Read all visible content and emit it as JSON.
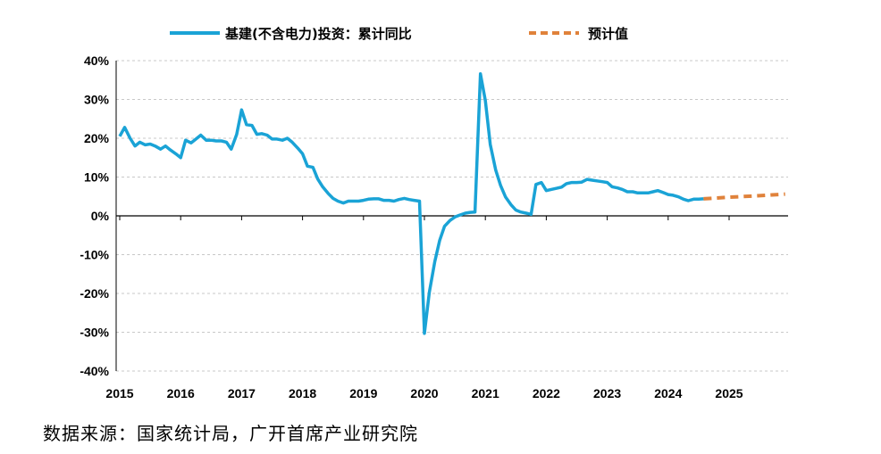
{
  "chart_data": {
    "type": "line",
    "title": "",
    "xlabel": "",
    "ylabel": "",
    "ylim": [
      -40,
      40
    ],
    "yticks": [
      40,
      30,
      20,
      10,
      0,
      -10,
      -20,
      -30,
      -40
    ],
    "ytick_labels": [
      "40%",
      "30%",
      "20%",
      "10%",
      "0%",
      "-10%",
      "-20%",
      "-30%",
      "-40%"
    ],
    "xlim": [
      2015,
      2026
    ],
    "xtick_labels": [
      "2015",
      "2016",
      "2017",
      "2018",
      "2019",
      "2020",
      "2021",
      "2022",
      "2023",
      "2024",
      "2025"
    ],
    "grid": true,
    "legend_position": "top",
    "series": [
      {
        "name": "基建(不含电力)投资：累计同比",
        "style": "solid",
        "color": "#1AA3D6",
        "points": [
          [
            2015.0,
            20.5
          ],
          [
            2015.08,
            22.8
          ],
          [
            2015.17,
            20.0
          ],
          [
            2015.25,
            18.0
          ],
          [
            2015.33,
            19.0
          ],
          [
            2015.42,
            18.3
          ],
          [
            2015.5,
            18.5
          ],
          [
            2015.58,
            18.0
          ],
          [
            2015.67,
            17.2
          ],
          [
            2015.75,
            18.0
          ],
          [
            2015.83,
            17.0
          ],
          [
            2015.92,
            16.0
          ],
          [
            2016.0,
            15.0
          ],
          [
            2016.08,
            19.5
          ],
          [
            2016.17,
            18.8
          ],
          [
            2016.25,
            19.8
          ],
          [
            2016.33,
            20.8
          ],
          [
            2016.42,
            19.5
          ],
          [
            2016.5,
            19.5
          ],
          [
            2016.58,
            19.3
          ],
          [
            2016.67,
            19.3
          ],
          [
            2016.75,
            19.0
          ],
          [
            2016.83,
            17.2
          ],
          [
            2016.92,
            21.0
          ],
          [
            2017.0,
            27.3
          ],
          [
            2017.08,
            23.5
          ],
          [
            2017.17,
            23.3
          ],
          [
            2017.25,
            21.0
          ],
          [
            2017.33,
            21.2
          ],
          [
            2017.42,
            20.8
          ],
          [
            2017.5,
            19.8
          ],
          [
            2017.58,
            19.8
          ],
          [
            2017.67,
            19.5
          ],
          [
            2017.75,
            20.0
          ],
          [
            2017.83,
            19.0
          ],
          [
            2017.92,
            17.5
          ],
          [
            2018.0,
            16.0
          ],
          [
            2018.08,
            12.8
          ],
          [
            2018.17,
            12.5
          ],
          [
            2018.25,
            9.5
          ],
          [
            2018.33,
            7.5
          ],
          [
            2018.42,
            5.8
          ],
          [
            2018.5,
            4.5
          ],
          [
            2018.58,
            3.8
          ],
          [
            2018.67,
            3.3
          ],
          [
            2018.75,
            3.8
          ],
          [
            2018.83,
            3.8
          ],
          [
            2018.92,
            3.8
          ],
          [
            2019.0,
            4.0
          ],
          [
            2019.08,
            4.3
          ],
          [
            2019.17,
            4.4
          ],
          [
            2019.25,
            4.4
          ],
          [
            2019.33,
            4.0
          ],
          [
            2019.42,
            4.0
          ],
          [
            2019.5,
            3.8
          ],
          [
            2019.58,
            4.2
          ],
          [
            2019.67,
            4.5
          ],
          [
            2019.75,
            4.2
          ],
          [
            2019.83,
            4.0
          ],
          [
            2019.92,
            3.8
          ],
          [
            2020.0,
            -30.3
          ],
          [
            2020.08,
            -19.7
          ],
          [
            2020.17,
            -11.8
          ],
          [
            2020.25,
            -6.3
          ],
          [
            2020.33,
            -2.7
          ],
          [
            2020.42,
            -1.2
          ],
          [
            2020.5,
            -0.3
          ],
          [
            2020.58,
            0.2
          ],
          [
            2020.67,
            0.7
          ],
          [
            2020.75,
            0.9
          ],
          [
            2020.83,
            1.0
          ],
          [
            2020.92,
            36.6
          ],
          [
            2021.0,
            29.7
          ],
          [
            2021.08,
            18.4
          ],
          [
            2021.17,
            11.8
          ],
          [
            2021.25,
            7.8
          ],
          [
            2021.33,
            4.9
          ],
          [
            2021.42,
            2.9
          ],
          [
            2021.5,
            1.5
          ],
          [
            2021.58,
            1.0
          ],
          [
            2021.67,
            0.7
          ],
          [
            2021.75,
            0.4
          ],
          [
            2021.83,
            8.1
          ],
          [
            2021.92,
            8.6
          ],
          [
            2022.0,
            6.5
          ],
          [
            2022.08,
            6.8
          ],
          [
            2022.17,
            7.1
          ],
          [
            2022.25,
            7.4
          ],
          [
            2022.33,
            8.3
          ],
          [
            2022.42,
            8.6
          ],
          [
            2022.5,
            8.6
          ],
          [
            2022.58,
            8.7
          ],
          [
            2022.67,
            9.4
          ],
          [
            2022.75,
            9.2
          ],
          [
            2022.83,
            9.0
          ],
          [
            2022.92,
            8.8
          ],
          [
            2023.0,
            8.6
          ],
          [
            2023.08,
            7.5
          ],
          [
            2023.17,
            7.2
          ],
          [
            2023.25,
            6.8
          ],
          [
            2023.33,
            6.2
          ],
          [
            2023.42,
            6.2
          ],
          [
            2023.5,
            5.9
          ],
          [
            2023.58,
            5.9
          ],
          [
            2023.67,
            5.9
          ],
          [
            2023.75,
            6.2
          ],
          [
            2023.83,
            6.5
          ],
          [
            2023.92,
            6.0
          ],
          [
            2024.0,
            5.5
          ],
          [
            2024.08,
            5.3
          ],
          [
            2024.17,
            4.9
          ],
          [
            2024.25,
            4.3
          ],
          [
            2024.33,
            3.9
          ],
          [
            2024.42,
            4.3
          ],
          [
            2024.5,
            4.3
          ],
          [
            2024.58,
            4.4
          ]
        ]
      },
      {
        "name": "预计值",
        "style": "dashed",
        "color": "#E0823B",
        "points": [
          [
            2024.58,
            4.4
          ],
          [
            2025.0,
            4.8
          ],
          [
            2025.5,
            5.2
          ],
          [
            2025.92,
            5.6
          ]
        ]
      }
    ]
  },
  "source": "数据来源：国家统计局，广开首席产业研究院"
}
